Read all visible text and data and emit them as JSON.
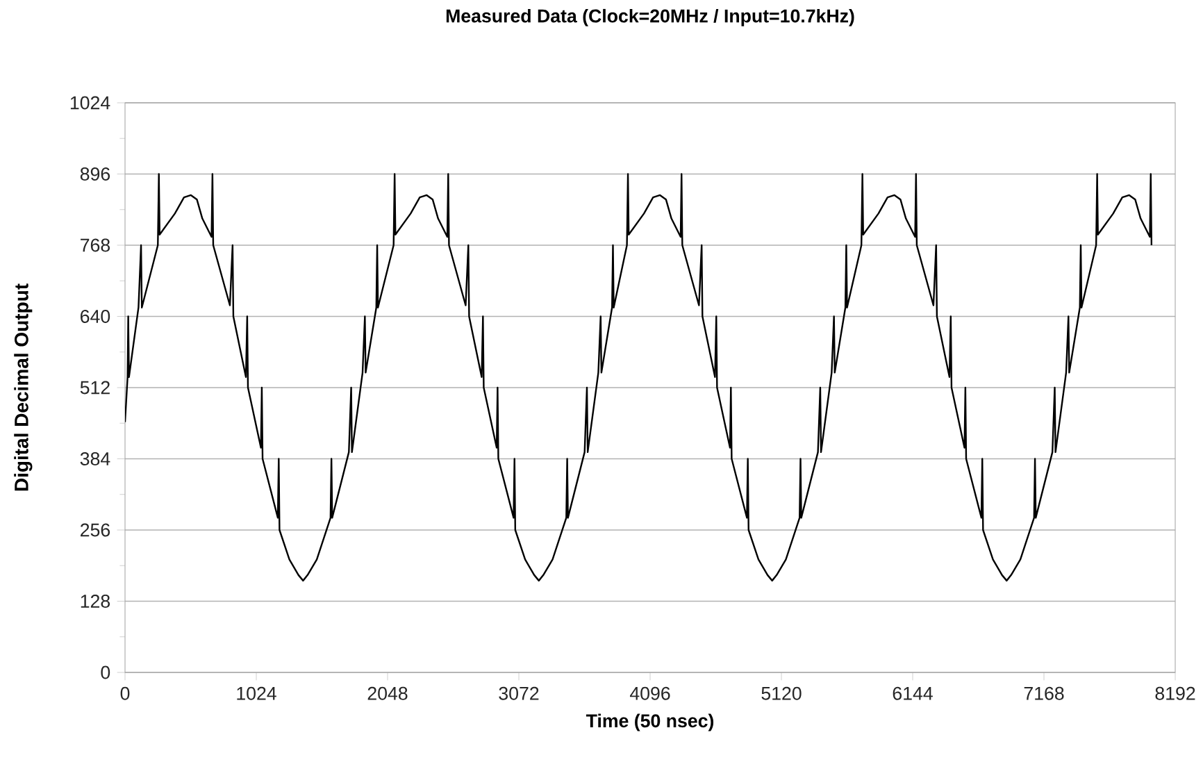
{
  "chart_data": {
    "type": "line",
    "title": "Measured Data (Clock=20MHz / Input=10.7kHz)",
    "xlabel": "Time (50 nsec)",
    "ylabel": "Digital Decimal Output",
    "x": [
      0,
      20,
      25,
      31,
      105,
      125,
      131,
      256,
      264,
      270,
      389,
      460,
      514,
      561,
      603,
      675,
      682,
      688,
      818,
      839,
      845,
      943,
      953,
      959,
      1060,
      1067,
      1073,
      1192,
      1199,
      1205,
      1282,
      1353,
      1389,
      1424,
      1496,
      1603,
      1610,
      1616,
      1746,
      1764,
      1770,
      1853,
      1871,
      1877,
      1960,
      1967,
      1973,
      2095,
      2103,
      2109,
      2228,
      2299,
      2353,
      2400,
      2442,
      2514,
      2521,
      2527,
      2657,
      2678,
      2684,
      2782,
      2792,
      2798,
      2899,
      2906,
      2912,
      3031,
      3038,
      3044,
      3121,
      3192,
      3228,
      3263,
      3335,
      3442,
      3449,
      3455,
      3585,
      3603,
      3609,
      3692,
      3710,
      3716,
      3799,
      3806,
      3812,
      3915,
      3923,
      3929,
      4048,
      4119,
      4173,
      4220,
      4262,
      4334,
      4341,
      4347,
      4477,
      4498,
      4504,
      4602,
      4612,
      4618,
      4719,
      4726,
      4732,
      4851,
      4858,
      4864,
      4941,
      5012,
      5048,
      5083,
      5155,
      5262,
      5269,
      5275,
      5405,
      5423,
      5429,
      5512,
      5530,
      5536,
      5619,
      5626,
      5632,
      5744,
      5752,
      5758,
      5877,
      5948,
      6002,
      6049,
      6091,
      6163,
      6170,
      6176,
      6306,
      6327,
      6333,
      6431,
      6441,
      6447,
      6548,
      6555,
      6561,
      6680,
      6687,
      6693,
      6770,
      6841,
      6877,
      6912,
      6984,
      7091,
      7098,
      7104,
      7234,
      7252,
      7258,
      7341,
      7359,
      7365,
      7448,
      7455,
      7461,
      7575,
      7583,
      7589,
      7708,
      7779,
      7833,
      7880,
      7922,
      7994,
      8001,
      8007
    ],
    "values": [
      450,
      531,
      640,
      531,
      656,
      768,
      656,
      768,
      896,
      787,
      825,
      854,
      858,
      850,
      816,
      783,
      896,
      768,
      660,
      768,
      640,
      531,
      640,
      512,
      404,
      512,
      384,
      278,
      384,
      256,
      203,
      175,
      165,
      175,
      203,
      278,
      384,
      278,
      396,
      512,
      396,
      539,
      640,
      539,
      656,
      768,
      656,
      768,
      896,
      787,
      825,
      854,
      858,
      850,
      816,
      783,
      896,
      768,
      660,
      768,
      640,
      531,
      640,
      512,
      404,
      512,
      384,
      278,
      384,
      256,
      203,
      175,
      165,
      175,
      203,
      278,
      384,
      278,
      396,
      512,
      396,
      539,
      640,
      539,
      656,
      768,
      656,
      768,
      896,
      787,
      825,
      854,
      858,
      850,
      816,
      783,
      896,
      768,
      660,
      768,
      640,
      531,
      640,
      512,
      404,
      512,
      384,
      278,
      384,
      256,
      203,
      175,
      165,
      175,
      203,
      278,
      384,
      278,
      396,
      512,
      396,
      539,
      640,
      539,
      656,
      768,
      656,
      768,
      896,
      787,
      825,
      854,
      858,
      850,
      816,
      783,
      896,
      768,
      660,
      768,
      640,
      531,
      640,
      512,
      404,
      512,
      384,
      278,
      384,
      256,
      203,
      175,
      165,
      175,
      203,
      278,
      384,
      278,
      396,
      512,
      396,
      539,
      640,
      539,
      656,
      768,
      656,
      768,
      896,
      787,
      825,
      854,
      858,
      850,
      816,
      783,
      896,
      768
    ],
    "color": "#000000",
    "xlim": [
      0,
      8192
    ],
    "xticks": [
      0,
      1024,
      2048,
      3072,
      4096,
      5120,
      6144,
      7168,
      8192
    ],
    "ylim": [
      0,
      1024
    ],
    "yticks": [
      0,
      128,
      256,
      384,
      512,
      640,
      768,
      896,
      1024
    ],
    "grid": "y"
  }
}
